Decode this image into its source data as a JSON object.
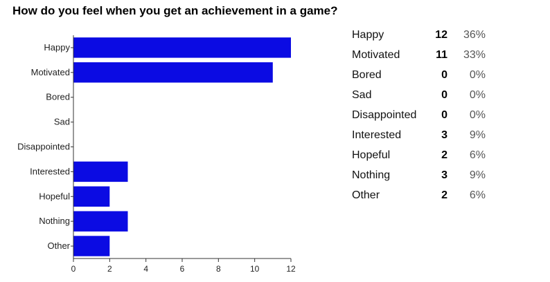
{
  "question": "How do you feel when you get an achievement in a game?",
  "chart_data": {
    "type": "bar",
    "orientation": "horizontal",
    "categories": [
      "Happy",
      "Motivated",
      "Bored",
      "Sad",
      "Disappointed",
      "Interested",
      "Hopeful",
      "Nothing",
      "Other"
    ],
    "values": [
      12,
      11,
      0,
      0,
      0,
      3,
      2,
      3,
      2
    ],
    "xlim": [
      0,
      12
    ],
    "xticks": [
      "0",
      "2",
      "4",
      "6",
      "8",
      "10",
      "12"
    ],
    "color": "#0b0be3",
    "grid": false,
    "legend": "none"
  },
  "summary": [
    {
      "label": "Happy",
      "count": "12",
      "percent": "36%"
    },
    {
      "label": "Motivated",
      "count": "11",
      "percent": "33%"
    },
    {
      "label": "Bored",
      "count": "0",
      "percent": "0%"
    },
    {
      "label": "Sad",
      "count": "0",
      "percent": "0%"
    },
    {
      "label": "Disappointed",
      "count": "0",
      "percent": "0%"
    },
    {
      "label": "Interested",
      "count": "3",
      "percent": "9%"
    },
    {
      "label": "Hopeful",
      "count": "2",
      "percent": "6%"
    },
    {
      "label": "Nothing",
      "count": "3",
      "percent": "9%"
    },
    {
      "label": "Other",
      "count": "2",
      "percent": "6%"
    }
  ]
}
